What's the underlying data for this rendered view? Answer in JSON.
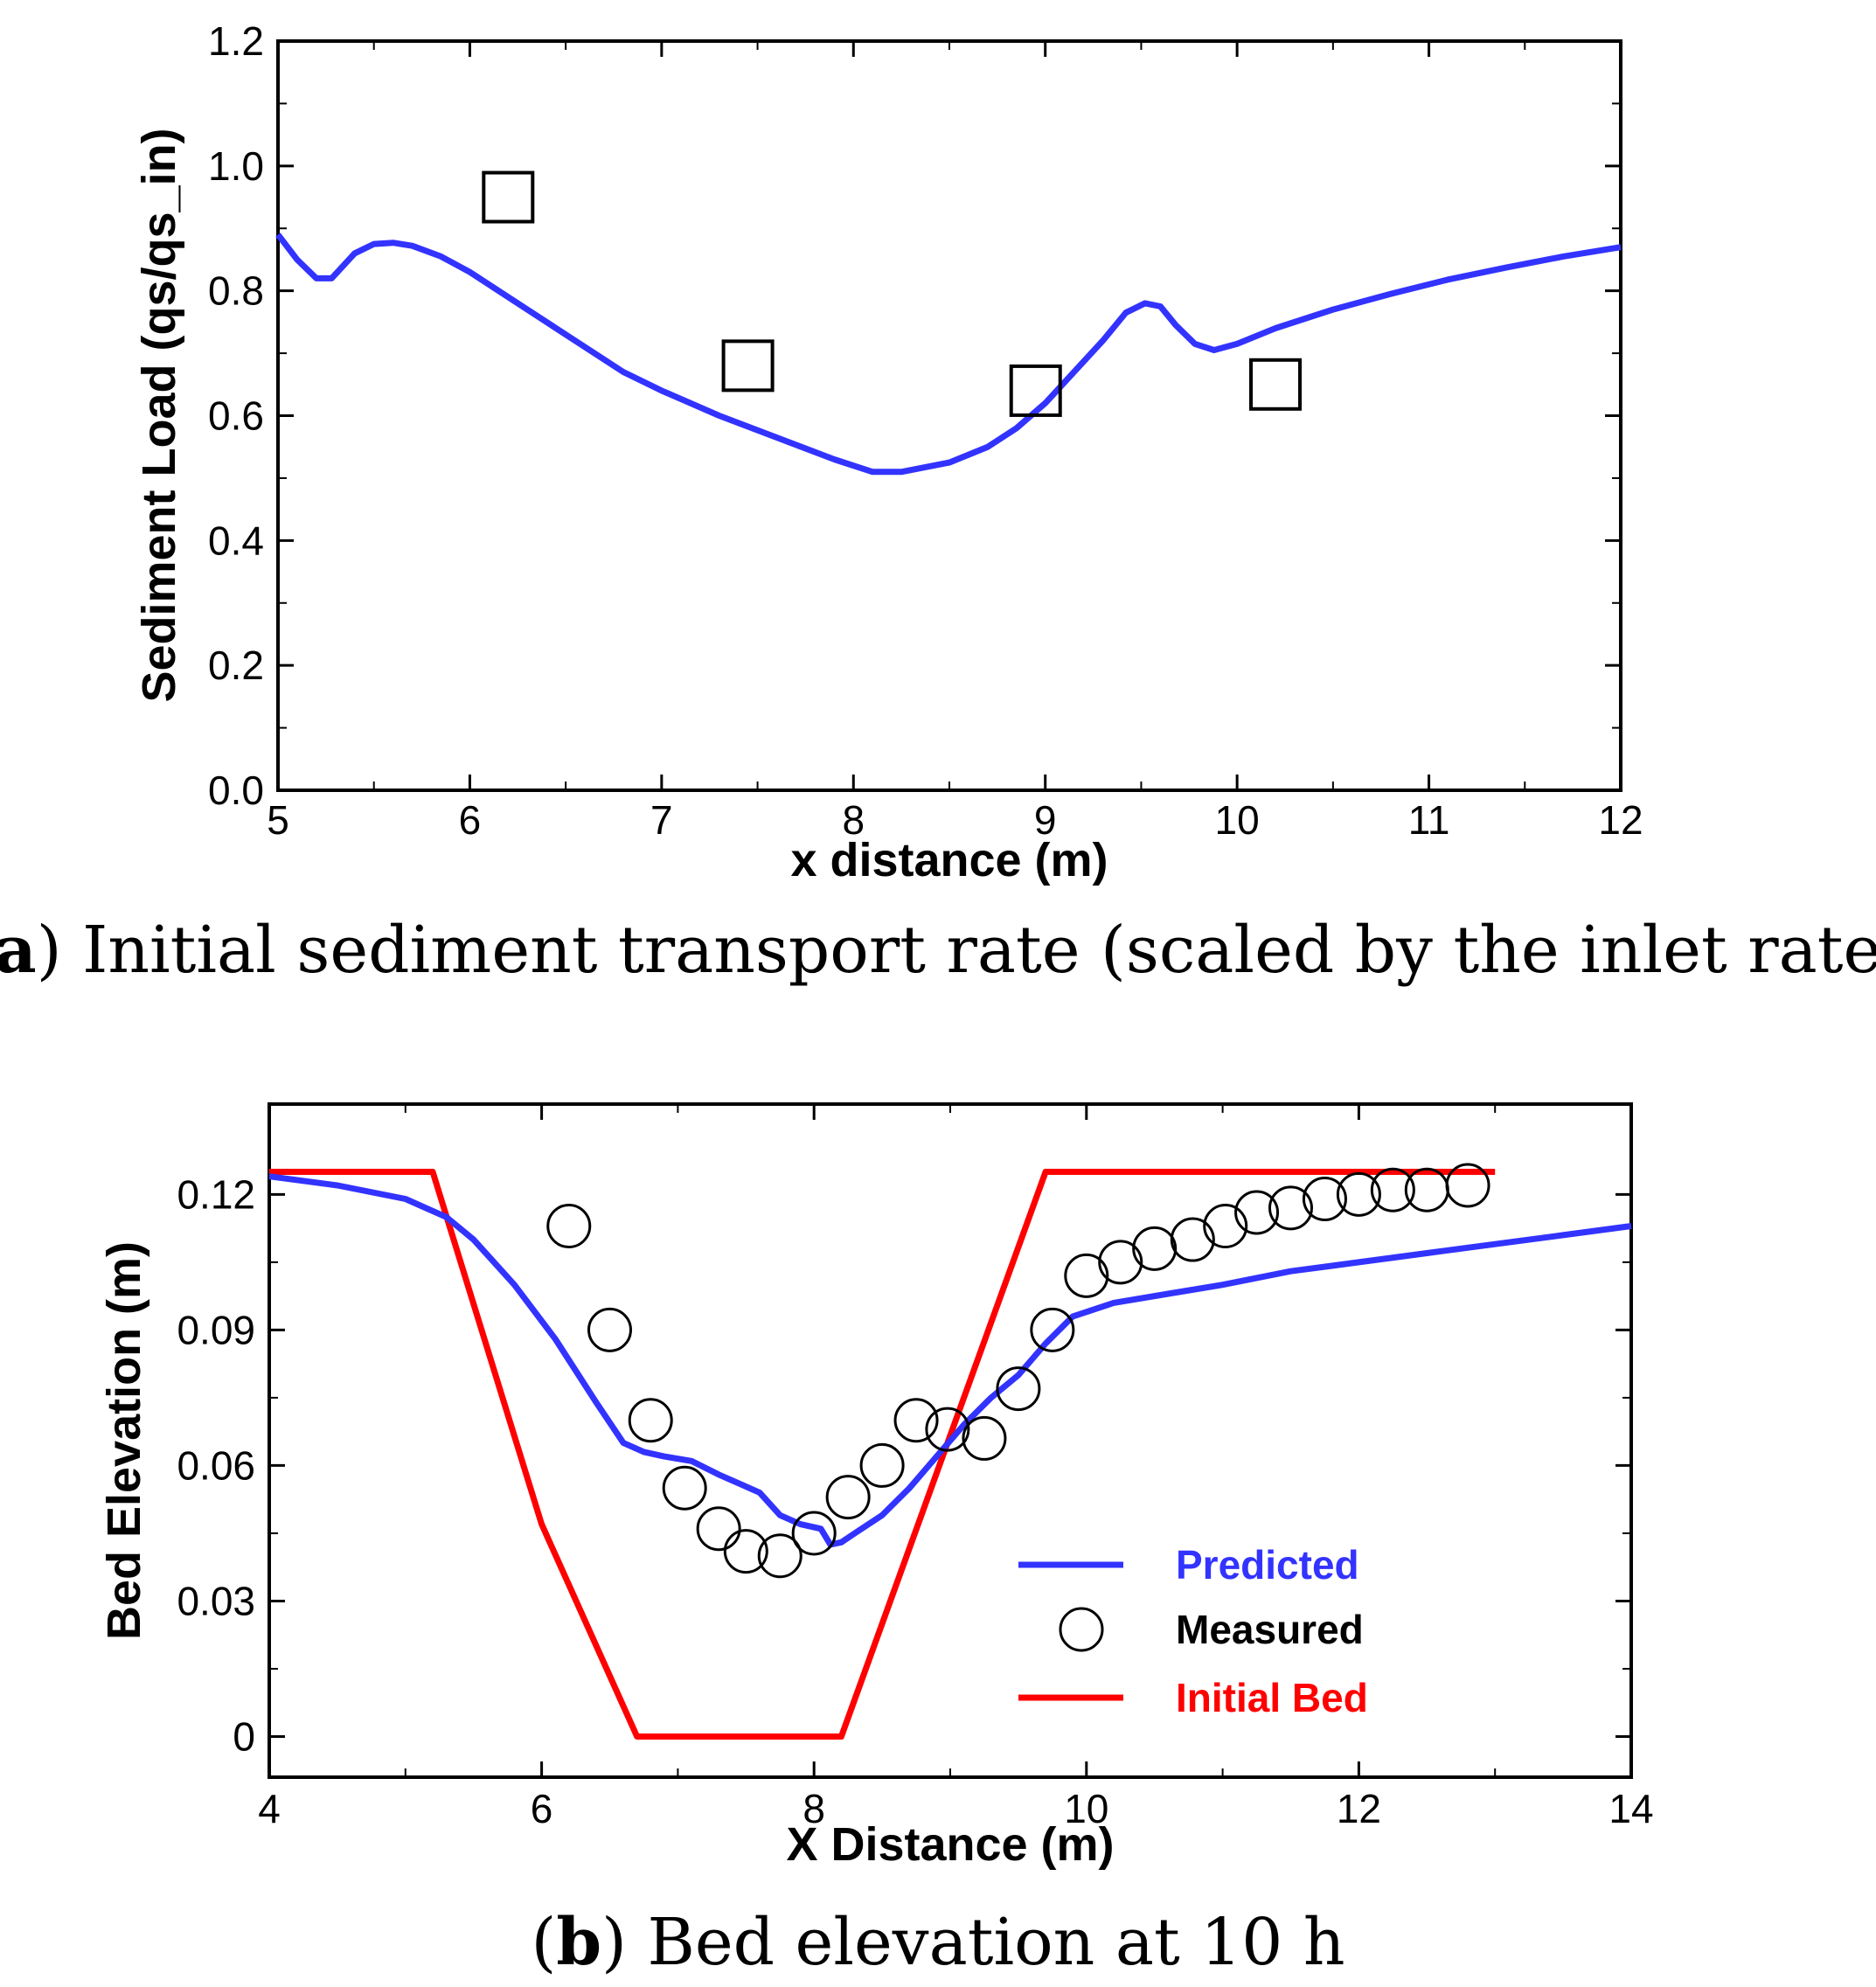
{
  "chart_data": [
    {
      "type": "line",
      "panel": "a",
      "caption_letter": "a",
      "caption_text": " Initial sediment transport rate (scaled by the inlet rate)",
      "xlabel": "x distance (m)",
      "ylabel": "Sediment Load (qs/qs_in)",
      "xlim": [
        5,
        12
      ],
      "ylim": [
        0,
        1.2
      ],
      "xticks": [
        5,
        6,
        7,
        8,
        9,
        10,
        11,
        12
      ],
      "yticks": [
        0.0,
        0.2,
        0.4,
        0.6,
        0.8,
        1.0,
        1.2
      ],
      "xtick_labels": [
        "5",
        "6",
        "7",
        "8",
        "9",
        "10",
        "11",
        "12"
      ],
      "ytick_labels": [
        "0.0",
        "0.2",
        "0.4",
        "0.6",
        "0.8",
        "1.0",
        "1.2"
      ],
      "line_color": "#3333ff",
      "marker_color": "#000000",
      "series": [
        {
          "name": "Predicted",
          "style": "line",
          "x": [
            5.0,
            5.1,
            5.2,
            5.28,
            5.4,
            5.5,
            5.6,
            5.7,
            5.85,
            6.0,
            6.2,
            6.5,
            6.8,
            7.0,
            7.3,
            7.6,
            7.9,
            8.1,
            8.25,
            8.5,
            8.7,
            8.85,
            9.0,
            9.15,
            9.3,
            9.42,
            9.52,
            9.6,
            9.68,
            9.78,
            9.88,
            10.0,
            10.2,
            10.5,
            10.8,
            11.1,
            11.4,
            11.7,
            12.0
          ],
          "y": [
            0.89,
            0.85,
            0.82,
            0.82,
            0.86,
            0.875,
            0.877,
            0.872,
            0.855,
            0.83,
            0.79,
            0.73,
            0.67,
            0.64,
            0.6,
            0.565,
            0.53,
            0.51,
            0.51,
            0.525,
            0.55,
            0.58,
            0.62,
            0.67,
            0.72,
            0.765,
            0.78,
            0.775,
            0.745,
            0.715,
            0.705,
            0.715,
            0.74,
            0.77,
            0.795,
            0.818,
            0.837,
            0.855,
            0.87
          ]
        },
        {
          "name": "Measured",
          "style": "square",
          "x": [
            6.2,
            7.45,
            8.95,
            10.2
          ],
          "y": [
            0.95,
            0.68,
            0.64,
            0.65
          ]
        }
      ]
    },
    {
      "type": "line",
      "panel": "b",
      "caption_letter": "b",
      "caption_text": " Bed elevation at 10 h",
      "xlabel": "X Distance (m)",
      "ylabel": "Bed Elevation (m)",
      "xlim": [
        4,
        14
      ],
      "ylim": [
        -0.009,
        0.14
      ],
      "xticks": [
        4,
        6,
        8,
        10,
        12,
        14
      ],
      "yticks": [
        0,
        0.03,
        0.06,
        0.09,
        0.12
      ],
      "xtick_labels": [
        "4",
        "6",
        "8",
        "10",
        "12",
        "14"
      ],
      "ytick_labels": [
        "0",
        "0.03",
        "0.06",
        "0.09",
        "0.12"
      ],
      "legend": {
        "position": "lower-right",
        "entries": [
          {
            "label": "Predicted",
            "color": "#3333ff",
            "style": "line"
          },
          {
            "label": "Measured",
            "color": "#000000",
            "style": "circle"
          },
          {
            "label": "Initial Bed",
            "color": "#ff0000",
            "style": "line"
          }
        ]
      },
      "series": [
        {
          "name": "Predicted",
          "color": "#3333ff",
          "style": "line",
          "x": [
            4.0,
            4.5,
            5.0,
            5.3,
            5.5,
            5.8,
            6.1,
            6.4,
            6.6,
            6.75,
            6.9,
            7.1,
            7.3,
            7.45,
            7.6,
            7.75,
            7.9,
            8.05,
            8.12,
            8.2,
            8.3,
            8.5,
            8.7,
            8.9,
            9.1,
            9.3,
            9.5,
            9.7,
            9.9,
            10.2,
            10.6,
            11.0,
            11.5,
            12.0,
            12.5,
            13.0,
            13.5,
            14.0
          ],
          "y": [
            0.124,
            0.122,
            0.119,
            0.115,
            0.11,
            0.1,
            0.088,
            0.074,
            0.065,
            0.063,
            0.062,
            0.061,
            0.058,
            0.056,
            0.054,
            0.049,
            0.047,
            0.046,
            0.0425,
            0.043,
            0.045,
            0.049,
            0.055,
            0.062,
            0.069,
            0.075,
            0.08,
            0.087,
            0.093,
            0.096,
            0.098,
            0.1,
            0.103,
            0.105,
            0.107,
            0.109,
            0.111,
            0.113
          ]
        },
        {
          "name": "Measured",
          "color": "#000000",
          "style": "circle",
          "x": [
            6.2,
            6.5,
            6.8,
            7.05,
            7.3,
            7.5,
            7.75,
            8.0,
            8.25,
            8.5,
            8.75,
            8.98,
            9.25,
            9.5,
            9.75,
            10.0,
            10.25,
            10.5,
            10.78,
            11.02,
            11.25,
            11.5,
            11.75,
            12.0,
            12.25,
            12.5,
            12.8
          ],
          "y": [
            0.113,
            0.09,
            0.07,
            0.055,
            0.046,
            0.041,
            0.04,
            0.045,
            0.053,
            0.06,
            0.07,
            0.068,
            0.066,
            0.077,
            0.09,
            0.102,
            0.105,
            0.108,
            0.11,
            0.113,
            0.116,
            0.117,
            0.119,
            0.12,
            0.121,
            0.121,
            0.122
          ]
        },
        {
          "name": "Initial Bed",
          "color": "#ff0000",
          "style": "line",
          "x": [
            4.0,
            5.2,
            6.0,
            6.7,
            8.2,
            9.7,
            13.0
          ],
          "y": [
            0.125,
            0.125,
            0.047,
            0.0,
            0.0,
            0.125,
            0.125
          ]
        }
      ]
    }
  ]
}
